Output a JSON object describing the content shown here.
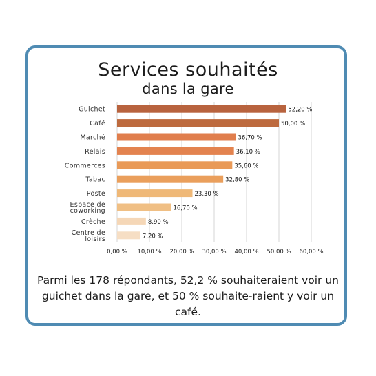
{
  "title": "Services souhaités",
  "subtitle": "dans la gare",
  "caption": "Parmi les 178 répondants, 52,2 % souhaiteraient voir un guichet dans la gare, et 50 % souhaite-raient y voir un café.",
  "colors": {
    "border": "#4f8bb3",
    "bar_shades": [
      "#b8633e",
      "#bd6a3e",
      "#e07e4d",
      "#e3834f",
      "#e99a58",
      "#ea9f5c",
      "#efb877",
      "#f0bf84",
      "#f5d7b7",
      "#f6dec4"
    ]
  },
  "chart_data": {
    "type": "bar",
    "orientation": "horizontal",
    "categories": [
      "Guichet",
      "Café",
      "Marché",
      "Relais",
      "Commerces",
      "Tabac",
      "Poste",
      "Espace de coworking",
      "Crèche",
      "Centre de loisirs"
    ],
    "values": [
      52.2,
      50.0,
      36.7,
      36.1,
      35.6,
      32.8,
      23.3,
      16.7,
      8.9,
      7.2
    ],
    "value_labels": [
      "52,20 %",
      "50,00 %",
      "36,70 %",
      "36,10 %",
      "35,60 %",
      "32,80 %",
      "23,30 %",
      "16,70 %",
      "8,90 %",
      "7,20 %"
    ],
    "xlim": [
      0,
      60
    ],
    "xticks": [
      "0,00 %",
      "10,00 %",
      "20,00 %",
      "30,00 %",
      "40,00 %",
      "50,00 %",
      "60,00 %"
    ],
    "grid": true,
    "legend": false
  }
}
